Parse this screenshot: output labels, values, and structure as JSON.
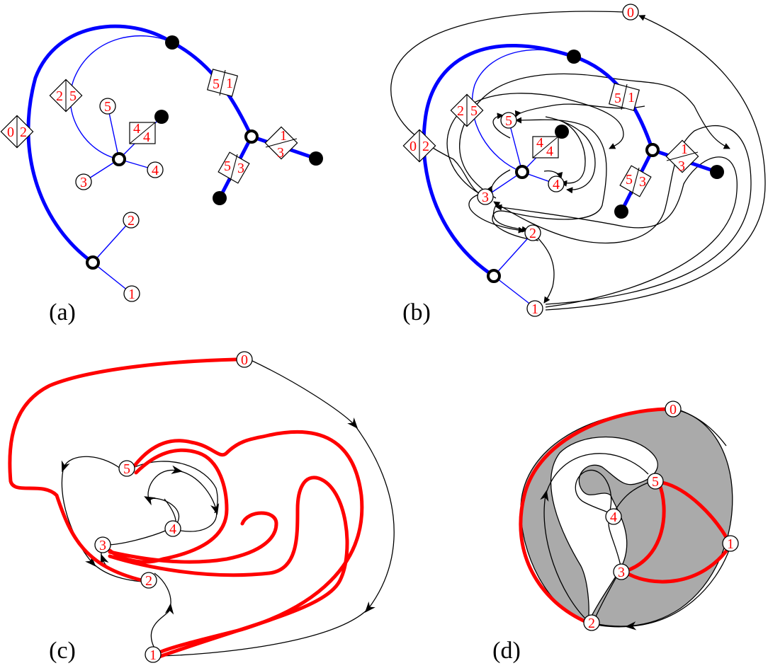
{
  "colors": {
    "accent_blue": "#0000ff",
    "accent_red": "#ff0000",
    "shade_gray": "#aaaaaa",
    "ink": "#000000"
  },
  "panels": [
    {
      "label": "(a)",
      "node_labels": [
        "1",
        "2",
        "3",
        "4",
        "5"
      ],
      "diamond_labels": [
        [
          "0",
          "2"
        ],
        [
          "2",
          "5"
        ],
        [
          "5",
          "1"
        ],
        [
          "4",
          "4"
        ],
        [
          "1",
          "3"
        ],
        [
          "5",
          "3"
        ]
      ]
    },
    {
      "label": "(b)",
      "node_labels": [
        "0",
        "1",
        "2",
        "3",
        "4",
        "5"
      ],
      "diamond_labels": [
        [
          "0",
          "2"
        ],
        [
          "2",
          "5"
        ],
        [
          "5",
          "1"
        ],
        [
          "4",
          "4"
        ],
        [
          "1",
          "3"
        ],
        [
          "5",
          "3"
        ]
      ]
    },
    {
      "label": "(c)",
      "node_labels": [
        "0",
        "1",
        "2",
        "3",
        "4",
        "5"
      ]
    },
    {
      "label": "(d)",
      "node_labels": [
        "0",
        "1",
        "2",
        "3",
        "4",
        "5"
      ]
    }
  ]
}
